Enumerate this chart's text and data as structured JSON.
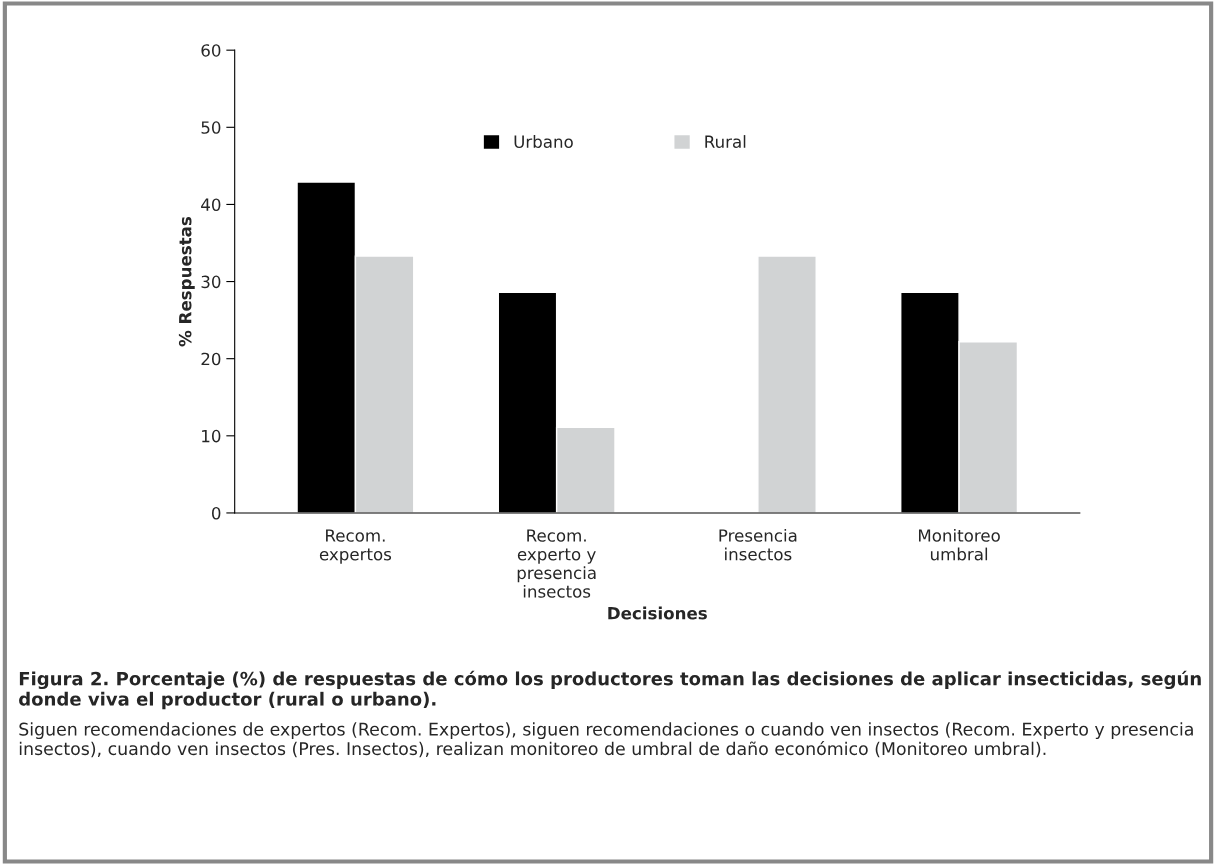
{
  "chart_data": {
    "type": "bar",
    "title": "Figura 2. Porcentaje (%) de respuestas de cómo los productores toman las decisiones de aplicar insecticidas, según donde viva el productor (rural o urbano).",
    "xlabel": "Decisiones",
    "ylabel": "% Respuestas",
    "categories": [
      "Recom.\nexpertos",
      "Recom.\nexperto y\npresencia\ninsectos",
      "Presencia\ninsectos",
      "Monitoreo\numbral"
    ],
    "series": [
      {
        "name": "Urbano",
        "color": "#000000",
        "values": [
          42.9,
          28.6,
          null,
          28.6
        ]
      },
      {
        "name": "Rural",
        "color": "#d1d3d4",
        "values": [
          33.3,
          11.1,
          33.3,
          22.2
        ]
      }
    ],
    "ylim": [
      0,
      60
    ],
    "yticks": [
      0,
      10,
      20,
      30,
      40,
      50,
      60
    ],
    "grid": false,
    "legend": "top",
    "annotations": [
      "Siguen recomendaciones de expertos (Recom. Expertos), siguen recomendaciones o cuando ven insectos (Recom. Experto y presencia insectos), cuando ven insectos (Pres. Insectos), realizan monitoreo de umbral de daño económico (Monitoreo umbral)."
    ]
  }
}
